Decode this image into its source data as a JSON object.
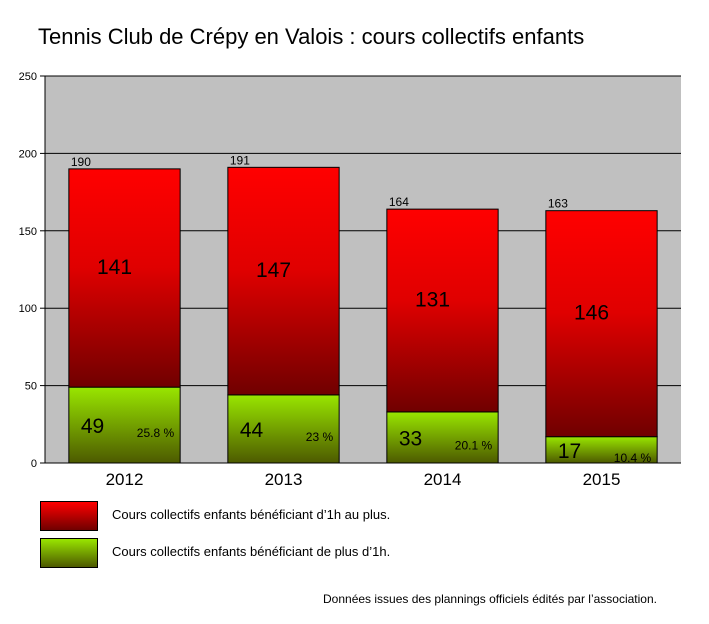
{
  "title": "Tennis Club de Crépy en Valois : cours collectifs enfants",
  "source_note": "Données issues des plannings officiels édités par l’association.",
  "legend": [
    {
      "label": "Cours collectifs enfants bénéficiant d’1h au plus.",
      "color_top": "#ff0000",
      "color_bottom": "#700000"
    },
    {
      "label": "Cours collectifs enfants bénéficiant de plus d’1h.",
      "color_top": "#99e600",
      "color_bottom": "#4d5a00"
    }
  ],
  "chart_data": {
    "type": "bar",
    "stacked": true,
    "categories": [
      "2012",
      "2013",
      "2014",
      "2015"
    ],
    "series": [
      {
        "name": "Cours collectifs enfants bénéficiant de plus d’1h.",
        "values": [
          49,
          44,
          33,
          17
        ],
        "percent_labels": [
          "25.8 %",
          "23 %",
          "20.1 %",
          "10.4 %"
        ],
        "color": "#88cc00"
      },
      {
        "name": "Cours collectifs enfants bénéficiant d’1h au plus.",
        "values": [
          141,
          147,
          131,
          146
        ],
        "color": "#ee0000"
      }
    ],
    "totals": [
      190,
      191,
      164,
      163
    ],
    "ylim": [
      0,
      250
    ],
    "yticks": [
      0,
      50,
      100,
      150,
      200,
      250
    ],
    "grid": true,
    "plot_background": "#c0c0c0",
    "legend_position": "bottom"
  }
}
